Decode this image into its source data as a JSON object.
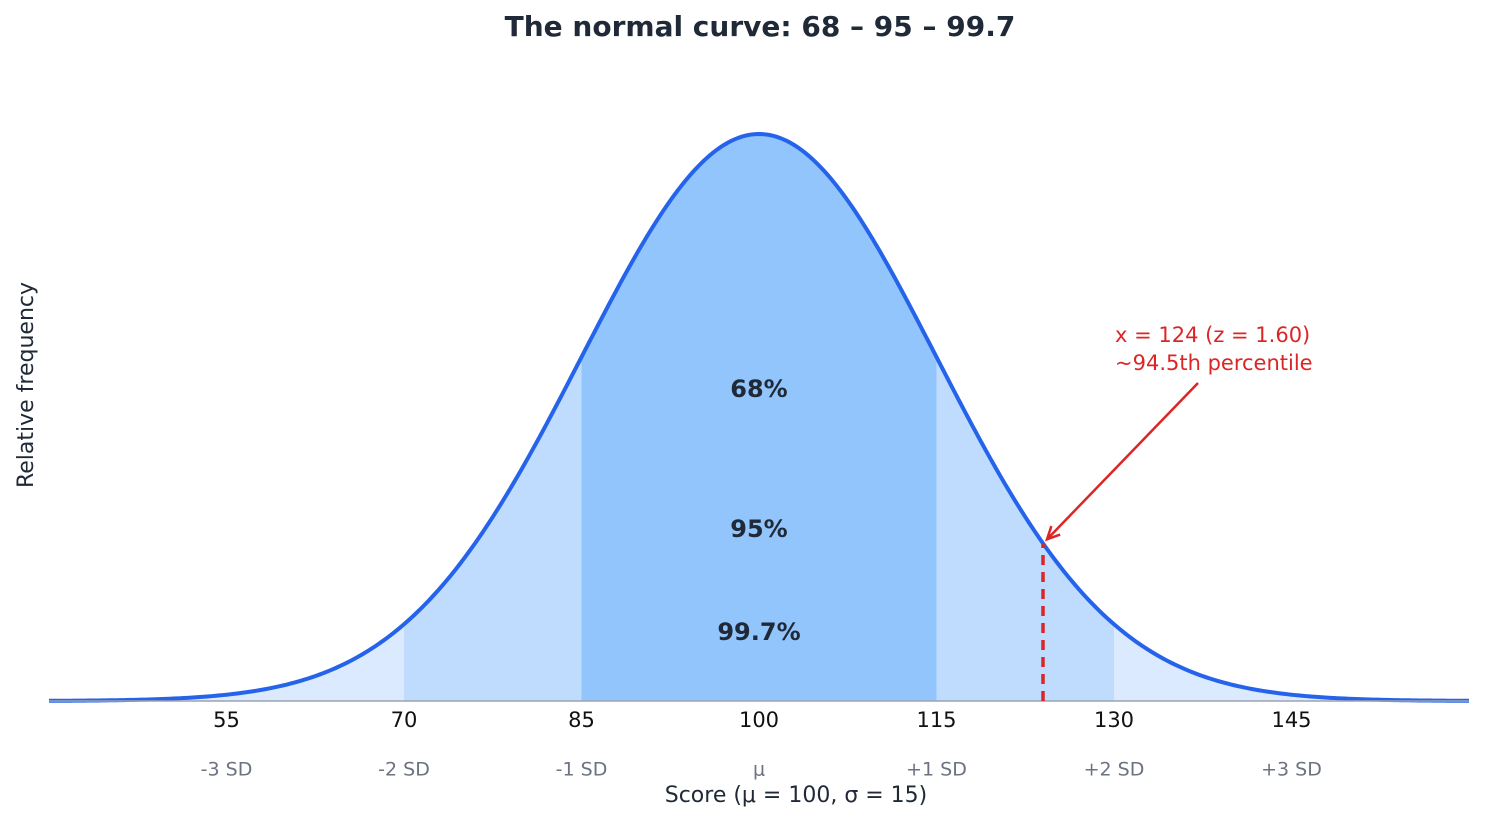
{
  "chart_data": {
    "type": "normal-curve",
    "title": "The normal curve: 68 – 95 – 99.7",
    "x_label": "Score  (μ = 100,  σ = 15)",
    "y_label": "Relative frequency",
    "mean": 100,
    "sd": 15,
    "xlim": [
      40,
      160
    ],
    "xticks": [
      55,
      70,
      85,
      100,
      115,
      130,
      145
    ],
    "xtick_sublabels": [
      "-3 SD",
      "-2 SD",
      "-1 SD",
      "μ",
      "+1 SD",
      "+2 SD",
      "+3 SD"
    ],
    "curve_color": "#2563eb",
    "fill_color": "#dbeafe",
    "bands": [
      {
        "label": "99.7%",
        "range": [
          55,
          145
        ],
        "color": "#dbeafe"
      },
      {
        "label": "95%",
        "range": [
          70,
          130
        ],
        "color": "#bfdbfe"
      },
      {
        "label": "68%",
        "range": [
          85,
          115
        ],
        "color": "#93c5fd"
      }
    ],
    "marker": {
      "x": 124,
      "label": [
        "x = 124  (z = 1.60)",
        "~94.5th percentile"
      ],
      "color": "#dc2626"
    }
  }
}
